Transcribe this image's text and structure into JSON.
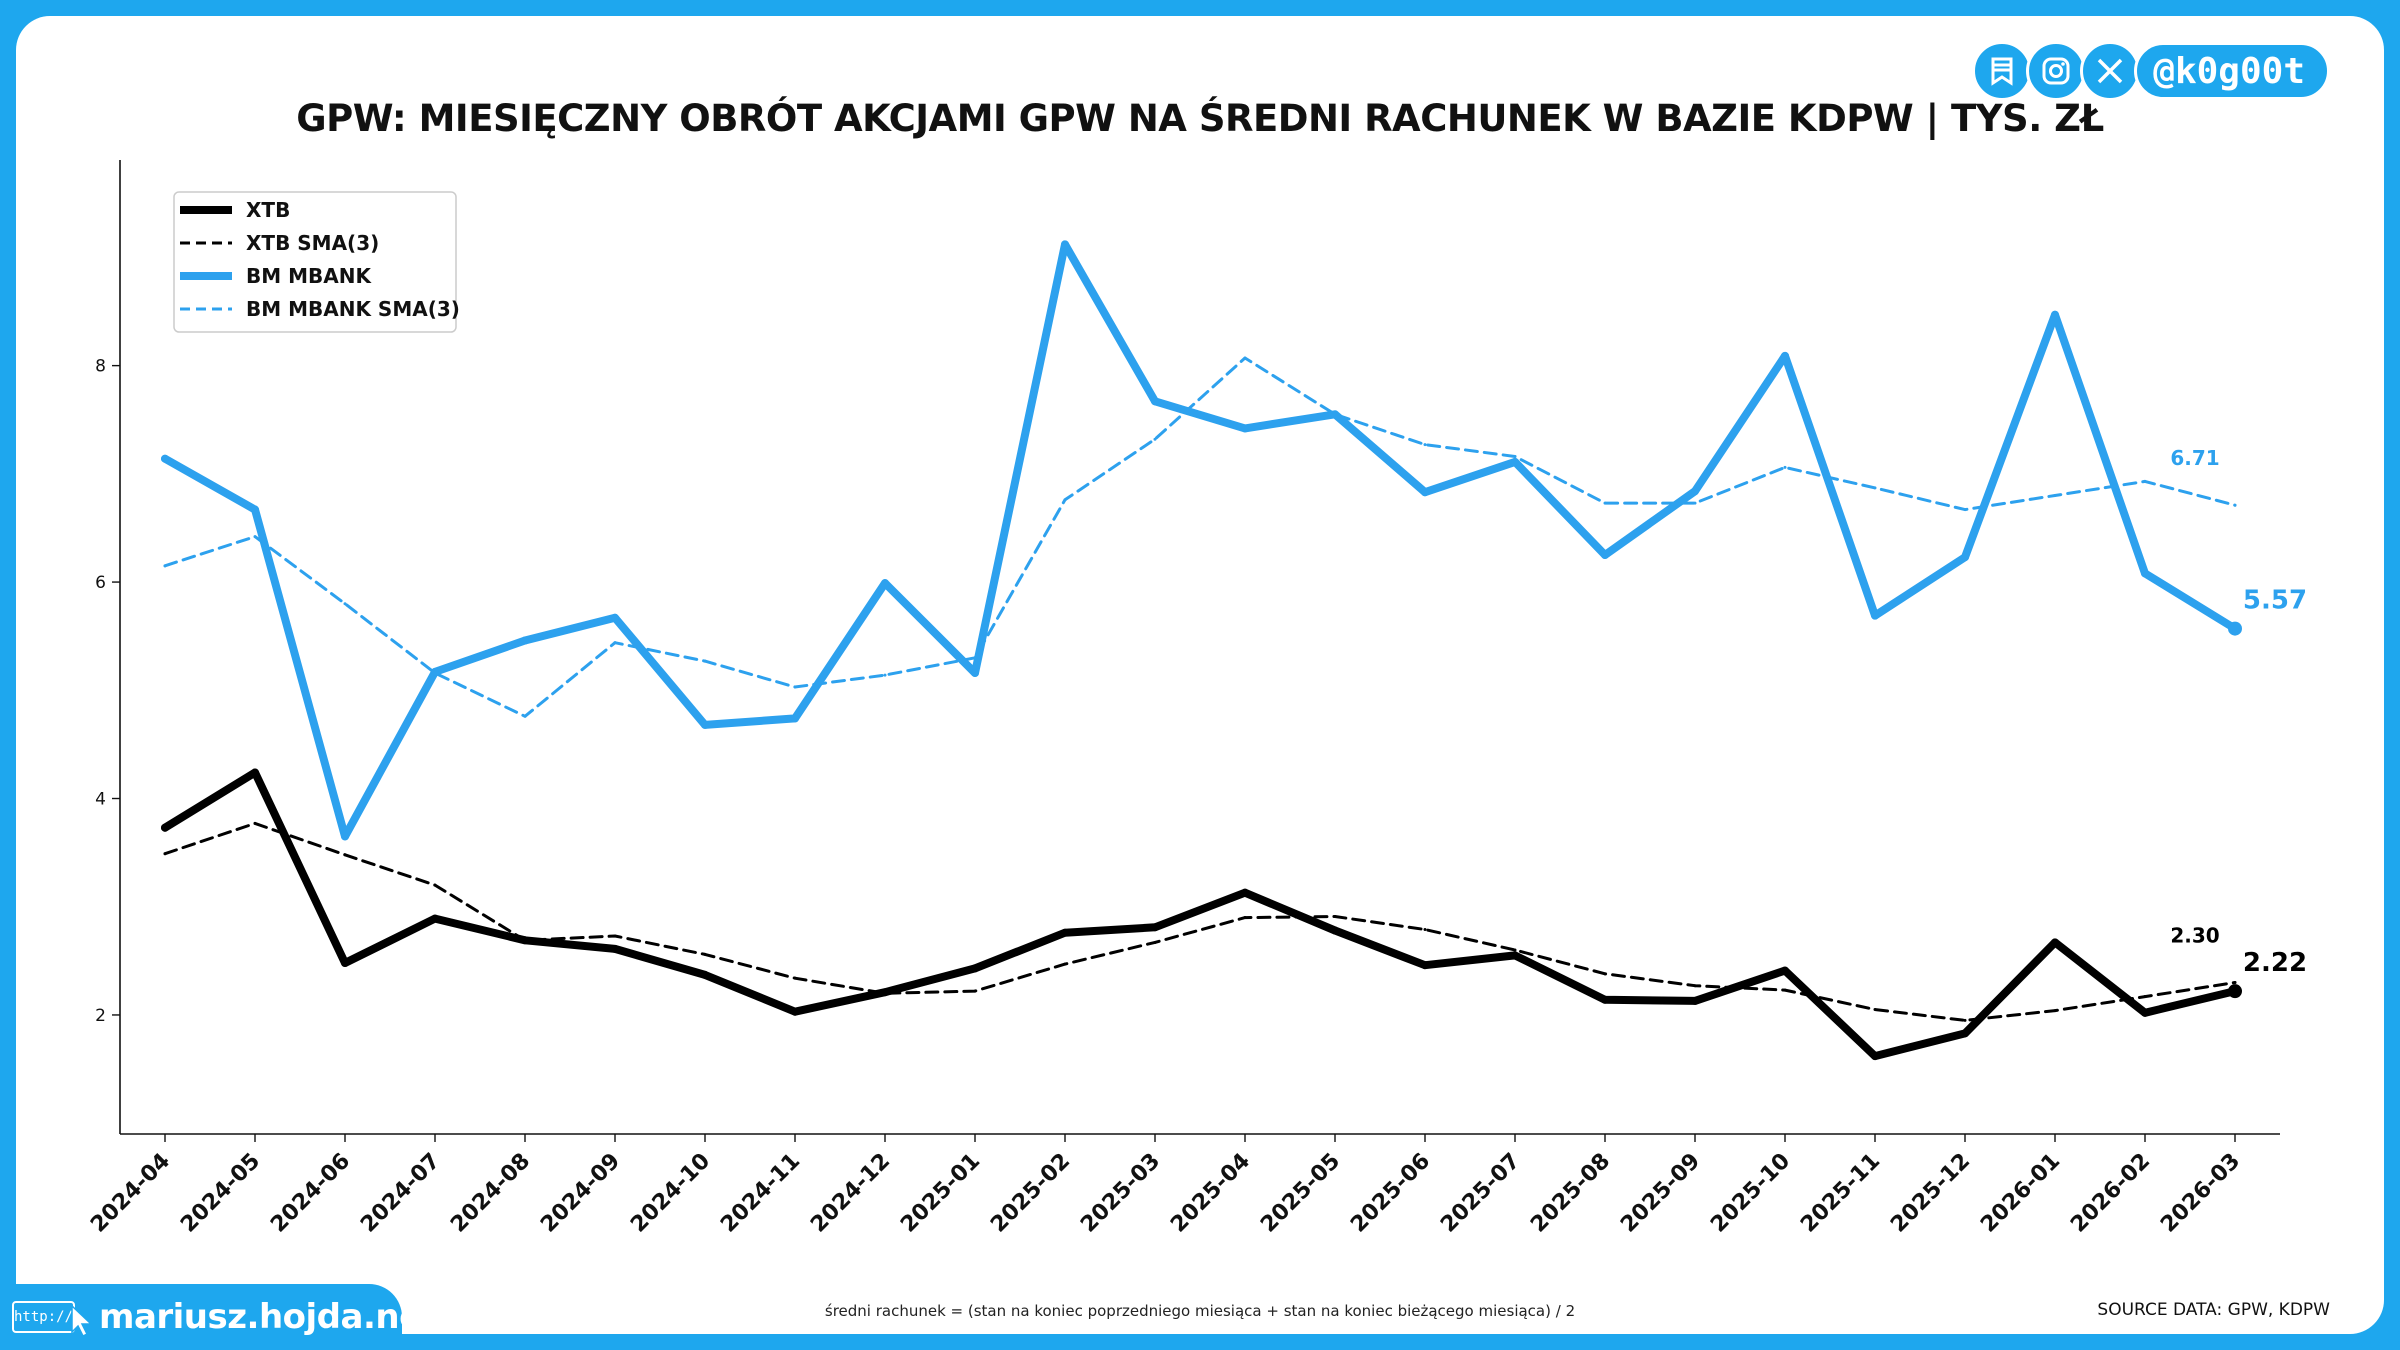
{
  "social": {
    "icons": [
      "bookmark-icon",
      "instagram-icon",
      "x-icon"
    ],
    "handle": "@k0g00t"
  },
  "website": {
    "badge": "http://",
    "name": "mariusz.hojda.net"
  },
  "footnote": "średni rachunek = (stan na koniec poprzedniego miesiąca + stan na koniec bieżącego miesiąca) / 2",
  "source": "SOURCE DATA: GPW, KDPW",
  "chart_data": {
    "type": "line",
    "title": "GPW: MIESIĘCZNY OBRÓT AKCJAMI GPW NA ŚREDNI RACHUNEK W BAZIE KDPW | TYS. ZŁ",
    "xlabel": "",
    "ylabel": "",
    "ylim": [
      0.9,
      9.9
    ],
    "yticks": [
      2,
      4,
      6,
      8
    ],
    "grid": false,
    "legend_position": "top-left",
    "categories": [
      "2024-04",
      "2024-05",
      "2024-06",
      "2024-07",
      "2024-08",
      "2024-09",
      "2024-10",
      "2024-11",
      "2024-12",
      "2025-01",
      "2025-02",
      "2025-03",
      "2025-04",
      "2025-05",
      "2025-06",
      "2025-07",
      "2025-08",
      "2025-09",
      "2025-10",
      "2025-11",
      "2025-12",
      "2026-01",
      "2026-02",
      "2026-03"
    ],
    "series": [
      {
        "name": "XTB",
        "color": "#000000",
        "style": "solid",
        "values": [
          3.73,
          4.24,
          2.48,
          2.89,
          2.69,
          2.61,
          2.37,
          2.03,
          2.21,
          2.43,
          2.76,
          2.81,
          3.13,
          2.78,
          2.46,
          2.55,
          2.14,
          2.13,
          2.41,
          1.62,
          1.83,
          2.67,
          2.02,
          2.22
        ],
        "end_label": "2.22"
      },
      {
        "name": "XTB SMA(3)",
        "color": "#000000",
        "style": "dashed",
        "values": [
          3.49,
          3.77,
          3.48,
          3.2,
          2.69,
          2.73,
          2.56,
          2.34,
          2.2,
          2.22,
          2.47,
          2.67,
          2.9,
          2.91,
          2.79,
          2.6,
          2.38,
          2.27,
          2.23,
          2.05,
          1.95,
          2.04,
          2.17,
          2.3
        ],
        "end_label": "2.30"
      },
      {
        "name": "BM MBANK",
        "color": "#2da1ee",
        "style": "solid",
        "values": [
          7.14,
          6.67,
          3.65,
          5.17,
          5.46,
          5.67,
          4.68,
          4.74,
          5.99,
          5.16,
          9.12,
          7.67,
          7.42,
          7.55,
          6.83,
          7.11,
          6.25,
          6.84,
          8.09,
          5.69,
          6.23,
          8.47,
          6.08,
          5.57
        ],
        "end_label": "5.57"
      },
      {
        "name": "BM MBANK SMA(3)",
        "color": "#2da1ee",
        "style": "dashed",
        "values": [
          6.15,
          6.42,
          5.8,
          5.16,
          4.76,
          5.44,
          5.27,
          5.03,
          5.14,
          5.3,
          6.76,
          7.32,
          8.07,
          7.55,
          7.27,
          7.16,
          6.73,
          6.73,
          7.06,
          6.87,
          6.67,
          6.8,
          6.93,
          6.71
        ],
        "end_label": "6.71"
      }
    ]
  }
}
